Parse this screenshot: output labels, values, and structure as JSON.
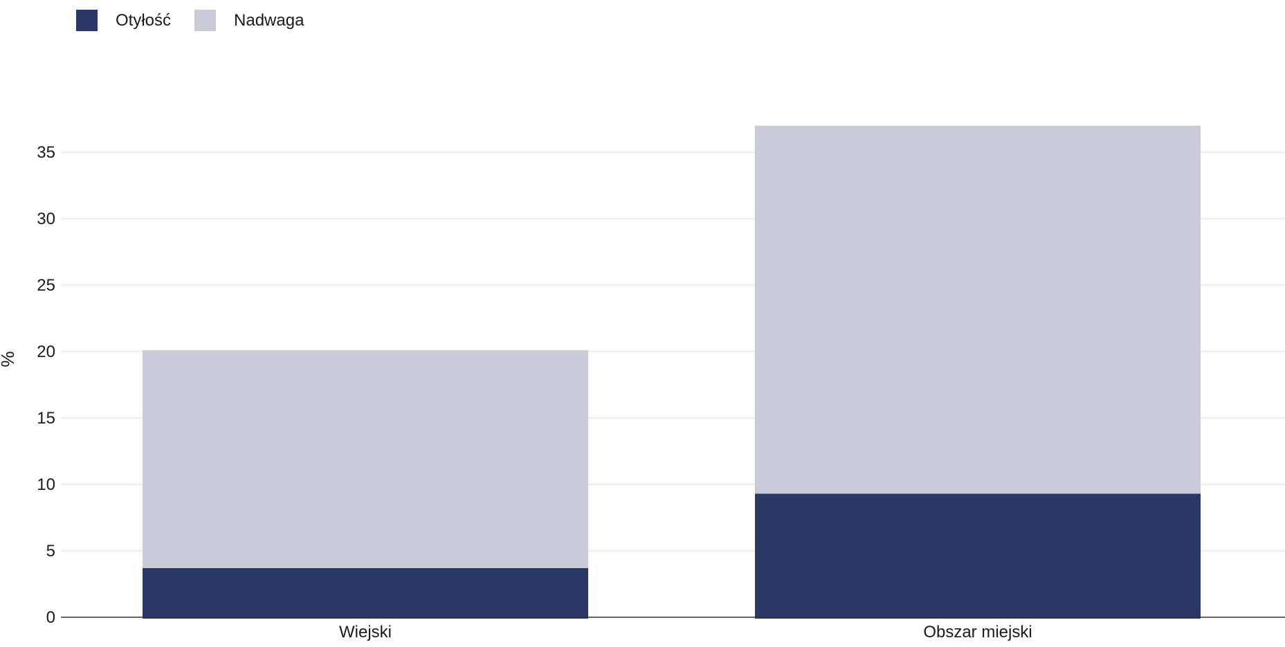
{
  "chart_data": {
    "type": "bar",
    "stacked": true,
    "categories": [
      "Wiejski",
      "Obszar miejski"
    ],
    "series": [
      {
        "name": "Otyłość",
        "color": "#2b3765",
        "values": [
          3.7,
          9.3
        ]
      },
      {
        "name": "Nadwaga",
        "color": "#c9ccd8",
        "values": [
          16.4,
          27.7
        ]
      }
    ],
    "ylabel": "%",
    "xlabel": "",
    "ylim": [
      0,
      37
    ],
    "yticks": [
      0,
      5,
      10,
      15,
      20,
      25,
      30,
      35
    ],
    "grid": true,
    "legend_position": "top-left"
  }
}
